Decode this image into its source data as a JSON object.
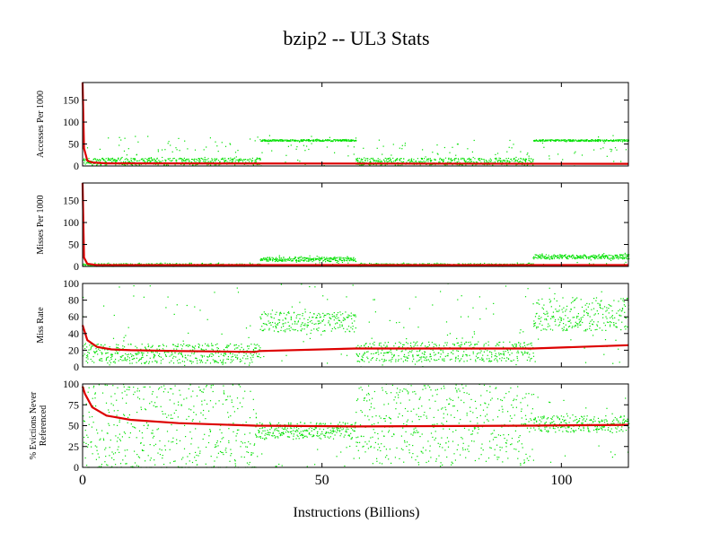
{
  "chart_data": {
    "type": "scatter",
    "title": "bzip2 -- UL3  Stats",
    "xlabel": "Instructions (Billions)",
    "xlim": [
      0,
      114
    ],
    "x_ticks": [
      "0",
      "50",
      "100"
    ],
    "x_tick_values": [
      0,
      50,
      100
    ],
    "colors": {
      "points": "#00e000",
      "trend": "#dd0000",
      "axis": "#000000"
    },
    "panels": [
      {
        "ylabel": [
          "Accesses Per 1000"
        ],
        "ylim": [
          0,
          190
        ],
        "y_ticks": [
          "0",
          "50",
          "100",
          "150"
        ],
        "y_tick_values": [
          0,
          50,
          100,
          150
        ],
        "series_points": {
          "name": "",
          "segments": [
            {
              "x": [
                0,
                37
              ],
              "base": 10,
              "spread": 8,
              "tail_max": 70
            },
            {
              "x": [
                37,
                57
              ],
              "base": 58,
              "spread": 2,
              "tail_max": 70
            },
            {
              "x": [
                57,
                94
              ],
              "base": 10,
              "spread": 8,
              "tail_max": 60
            },
            {
              "x": [
                94,
                114
              ],
              "base": 58,
              "spread": 2,
              "tail_max": 70
            }
          ]
        },
        "trend": {
          "x": [
            0,
            0.3,
            1,
            2,
            5,
            114
          ],
          "y": [
            190,
            40,
            12,
            8,
            6,
            5
          ]
        }
      },
      {
        "ylabel": [
          "Misses Per 1000"
        ],
        "ylim": [
          0,
          190
        ],
        "y_ticks": [
          "0",
          "50",
          "100",
          "150"
        ],
        "y_tick_values": [
          0,
          50,
          100,
          150
        ],
        "series_points": {
          "name": "",
          "segments": [
            {
              "x": [
                0,
                37
              ],
              "base": 3,
              "spread": 3,
              "tail_max": 8
            },
            {
              "x": [
                37,
                57
              ],
              "base": 16,
              "spread": 5,
              "tail_max": 25
            },
            {
              "x": [
                57,
                94
              ],
              "base": 3,
              "spread": 3,
              "tail_max": 8
            },
            {
              "x": [
                94,
                114
              ],
              "base": 22,
              "spread": 5,
              "tail_max": 30
            }
          ]
        },
        "trend": {
          "x": [
            0,
            0.3,
            1,
            3,
            114
          ],
          "y": [
            190,
            20,
            6,
            3,
            3
          ]
        }
      },
      {
        "ylabel": [
          "Miss Rate"
        ],
        "ylim": [
          0,
          100
        ],
        "y_ticks": [
          "0",
          "20",
          "40",
          "60",
          "80",
          "100"
        ],
        "y_tick_values": [
          0,
          20,
          40,
          60,
          80,
          100
        ],
        "series_points": {
          "name": "",
          "segments": [
            {
              "x": [
                0,
                37
              ],
              "base": 16,
              "spread": 12,
              "tail_max": 100
            },
            {
              "x": [
                37,
                57
              ],
              "base": 54,
              "spread": 12,
              "tail_max": 100
            },
            {
              "x": [
                57,
                94
              ],
              "base": 18,
              "spread": 12,
              "tail_max": 100
            },
            {
              "x": [
                94,
                114
              ],
              "base": 63,
              "spread": 20,
              "tail_max": 100
            }
          ]
        },
        "trend": {
          "x": [
            0,
            1,
            3,
            6,
            10,
            20,
            36,
            37,
            57,
            94,
            114
          ],
          "y": [
            50,
            32,
            24,
            21,
            20,
            19,
            18,
            19,
            22,
            22,
            26
          ]
        }
      },
      {
        "ylabel": [
          "% Evictions Never",
          "Referenced"
        ],
        "ylim": [
          0,
          100
        ],
        "y_ticks": [
          "0",
          "25",
          "50",
          "75",
          "100"
        ],
        "y_tick_values": [
          0,
          25,
          50,
          75,
          100
        ],
        "series_points": {
          "name": "",
          "segments": [
            {
              "x": [
                0,
                36
              ],
              "base": 45,
              "spread": 55,
              "tail_max": 100
            },
            {
              "x": [
                36,
                57
              ],
              "base": 44,
              "spread": 10,
              "tail_max": 55
            },
            {
              "x": [
                57,
                94
              ],
              "base": 52,
              "spread": 48,
              "tail_max": 100
            },
            {
              "x": [
                94,
                114
              ],
              "base": 52,
              "spread": 10,
              "tail_max": 85
            }
          ]
        },
        "trend": {
          "x": [
            0,
            0.5,
            2,
            5,
            10,
            20,
            36,
            57,
            94,
            114
          ],
          "y": [
            97,
            88,
            72,
            62,
            57,
            53,
            50,
            49,
            50,
            51
          ]
        }
      }
    ]
  }
}
